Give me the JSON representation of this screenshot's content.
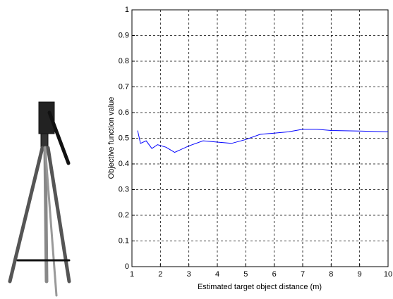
{
  "chart_data": {
    "type": "line",
    "xlabel": "Estimated target object distance (m)",
    "ylabel": "Objective function value",
    "x": [
      1.2,
      1.3,
      1.5,
      1.7,
      1.9,
      2.2,
      2.5,
      3,
      3.5,
      4,
      4.5,
      5,
      5.5,
      6,
      6.5,
      7,
      7.5,
      8,
      9,
      10
    ],
    "values": [
      0.53,
      0.48,
      0.49,
      0.46,
      0.475,
      0.465,
      0.445,
      0.47,
      0.49,
      0.485,
      0.48,
      0.495,
      0.515,
      0.52,
      0.525,
      0.535,
      0.535,
      0.53,
      0.528,
      0.525
    ],
    "color": "#0000ff",
    "xlim": [
      1,
      10
    ],
    "xticks": [
      1,
      2,
      3,
      4,
      5,
      6,
      7,
      8,
      9,
      10
    ],
    "ylim": [
      0,
      1
    ],
    "yticks": [
      0,
      0.1,
      0.2,
      0.3,
      0.4,
      0.5,
      0.6,
      0.7,
      0.8,
      0.9,
      1
    ],
    "grid": true
  }
}
